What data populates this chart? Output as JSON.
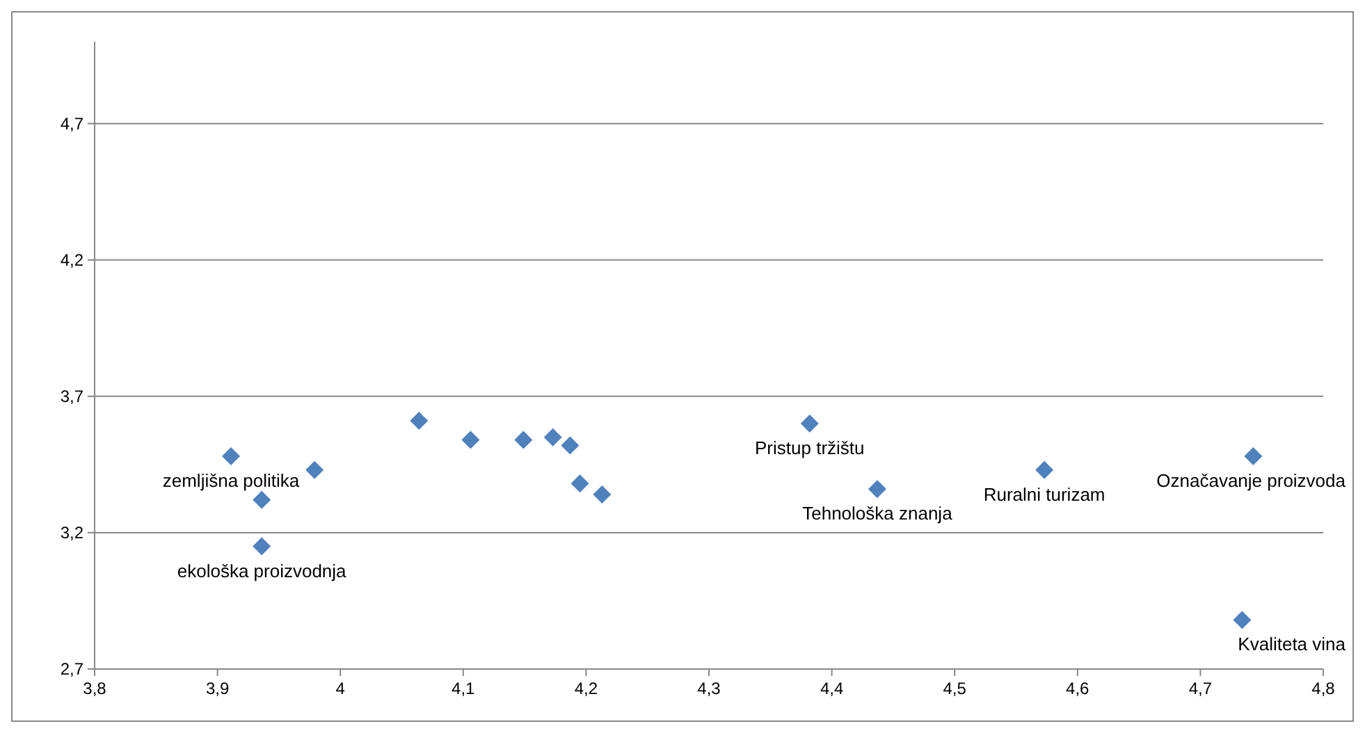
{
  "chart_data": {
    "type": "scatter",
    "marker": "diamond",
    "grid": "y",
    "xlim": [
      3.8,
      4.8
    ],
    "xticks": [
      {
        "value": 3.8,
        "label": "3,8"
      },
      {
        "value": 3.9,
        "label": "3,9"
      },
      {
        "value": 4,
        "label": "4"
      },
      {
        "value": 4.1,
        "label": "4,1"
      },
      {
        "value": 4.2,
        "label": "4,2"
      },
      {
        "value": 4.3,
        "label": "4,3"
      },
      {
        "value": 4.4,
        "label": "4,4"
      },
      {
        "value": 4.5,
        "label": "4,5"
      },
      {
        "value": 4.6,
        "label": "4,6"
      },
      {
        "value": 4.7,
        "label": "4,7"
      },
      {
        "value": 4.8,
        "label": "4,8"
      }
    ],
    "ylim": [
      2.7,
      5.0
    ],
    "yticks": [
      {
        "value": 2.7,
        "label": "2,7"
      },
      {
        "value": 3.2,
        "label": "3,2"
      },
      {
        "value": 3.7,
        "label": "3,7"
      },
      {
        "value": 4.2,
        "label": "4,2"
      },
      {
        "value": 4.7,
        "label": "4,7"
      }
    ],
    "series": [
      {
        "color": "#4f81bd",
        "x": [
          3.911,
          3.936,
          3.936,
          3.979,
          4.064,
          4.106,
          4.149,
          4.173,
          4.187,
          4.195,
          4.213,
          4.382,
          4.437,
          4.573,
          4.743,
          4.734
        ],
        "values": [
          3.48,
          3.32,
          3.15,
          3.43,
          3.61,
          3.54,
          3.54,
          3.55,
          3.52,
          3.38,
          3.34,
          3.6,
          3.36,
          3.43,
          3.48,
          2.88
        ]
      }
    ],
    "annotations": [
      {
        "text": "zemljišna politika",
        "x": 3.911,
        "y": 3.48
      },
      {
        "text": "ekološka proizvodnja",
        "x": 3.936,
        "y": 3.15
      },
      {
        "text": "Pristup tržištu",
        "x": 4.382,
        "y": 3.6
      },
      {
        "text": "Tehnološka znanja",
        "x": 4.437,
        "y": 3.36
      },
      {
        "text": "Ruralni turizam",
        "x": 4.573,
        "y": 3.43
      },
      {
        "text": "Označavanje proizvoda",
        "x": 4.743,
        "y": 3.48
      },
      {
        "text": "Kvaliteta vina",
        "x": 4.734,
        "y": 2.88
      }
    ]
  }
}
